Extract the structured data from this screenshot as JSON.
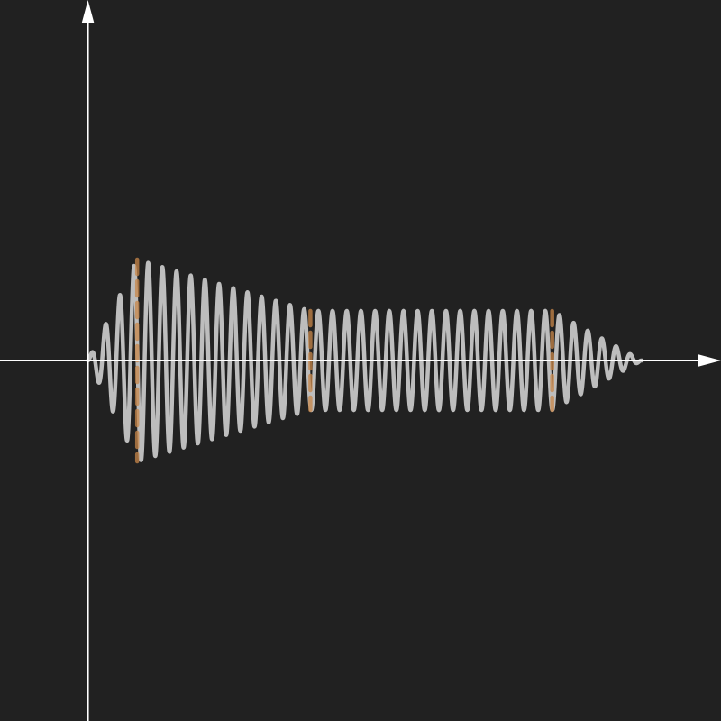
{
  "colors": {
    "background": "#212121",
    "axis": "#ffffff",
    "waveform": "#bdbdbd",
    "markers": "#c8874a"
  },
  "chart_data": {
    "type": "line",
    "title": "",
    "xlabel": "",
    "ylabel": "",
    "grid": false,
    "legend": "none",
    "xlim": [
      -1.0,
      7.2
    ],
    "ylim": [
      -4.0,
      4.0
    ],
    "series": [
      {
        "kind": "adsr-enveloped-sine",
        "cycles_per_unit": 6.2,
        "envelope_points": [
          {
            "x": 0.0,
            "y": 0.0
          },
          {
            "x": 0.56,
            "y": 1.12
          },
          {
            "x": 2.53,
            "y": 0.55
          },
          {
            "x": 5.28,
            "y": 0.55
          },
          {
            "x": 6.3,
            "y": 0.0
          }
        ]
      }
    ],
    "markers": [
      {
        "x": 0.56,
        "y_min": -1.12,
        "y_max": 1.12
      },
      {
        "x": 2.53,
        "y_min": -0.55,
        "y_max": 0.55
      },
      {
        "x": 5.28,
        "y_min": -0.55,
        "y_max": 0.55
      }
    ]
  }
}
